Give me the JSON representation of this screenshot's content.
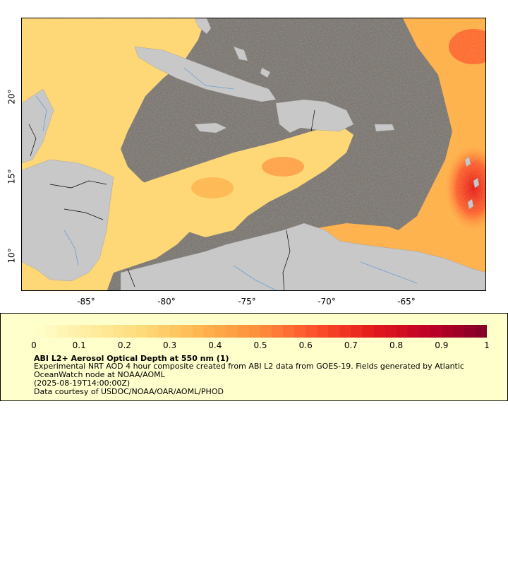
{
  "map": {
    "x_ticks": [
      "-85°",
      "-80°",
      "-75°",
      "-70°",
      "-65°"
    ],
    "y_ticks": [
      "20°",
      "15°",
      "10°"
    ],
    "colors": {
      "ocean_nodata": "#787878",
      "land": "#c8c8c8",
      "border": "#000000",
      "river": "#6a9fd4"
    }
  },
  "legend": {
    "ticks": [
      "0",
      "0.1",
      "0.2",
      "0.3",
      "0.4",
      "0.5",
      "0.6",
      "0.7",
      "0.8",
      "0.9",
      "1"
    ],
    "colormap": [
      "#ffffcc",
      "#ffeda0",
      "#fed976",
      "#feb24c",
      "#fd8d3c",
      "#fc4e2a",
      "#e31a1c",
      "#bd0026",
      "#800026"
    ],
    "title": "ABI L2+ Aerosol Optical Depth at 550 nm (1)",
    "description": "Experimental NRT AOD 4 hour composite created from ABI L2 data from GOES-19. Fields generated by Atlantic OceanWatch node at NOAA/AOML",
    "timestamp": "(2025-08-19T14:00:00Z)",
    "credit": "Data courtesy of USDOC/NOAA/OAR/AOML/PHOD"
  }
}
